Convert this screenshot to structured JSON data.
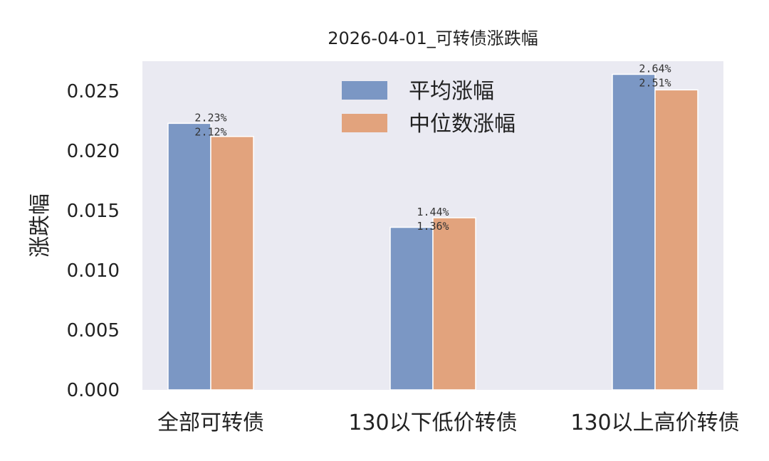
{
  "chart_data": {
    "type": "bar",
    "title": "2026-04-01_可转债涨跌幅",
    "xlabel": "",
    "ylabel": "涨跌幅",
    "categories": [
      "全部可转债",
      "130以下低价转债",
      "130以上高价转债"
    ],
    "series": [
      {
        "name": "平均涨幅",
        "values": [
          0.0223,
          0.0136,
          0.0264
        ],
        "labels": [
          "2.23%",
          "1.36%",
          "2.64%"
        ],
        "color": "#7b97c4"
      },
      {
        "name": "中位数涨幅",
        "values": [
          0.0212,
          0.0144,
          0.0251
        ],
        "labels": [
          "2.12%",
          "1.44%",
          "2.51%"
        ],
        "color": "#e2a37d"
      }
    ],
    "ylim": [
      0,
      0.0275
    ],
    "yticks": [
      "0.000",
      "0.005",
      "0.010",
      "0.015",
      "0.020",
      "0.025"
    ],
    "ytick_values": [
      0,
      0.005,
      0.01,
      0.015,
      0.02,
      0.025
    ],
    "grid": false,
    "legend_position": "top-center",
    "background_color": "#eaeaf2"
  }
}
